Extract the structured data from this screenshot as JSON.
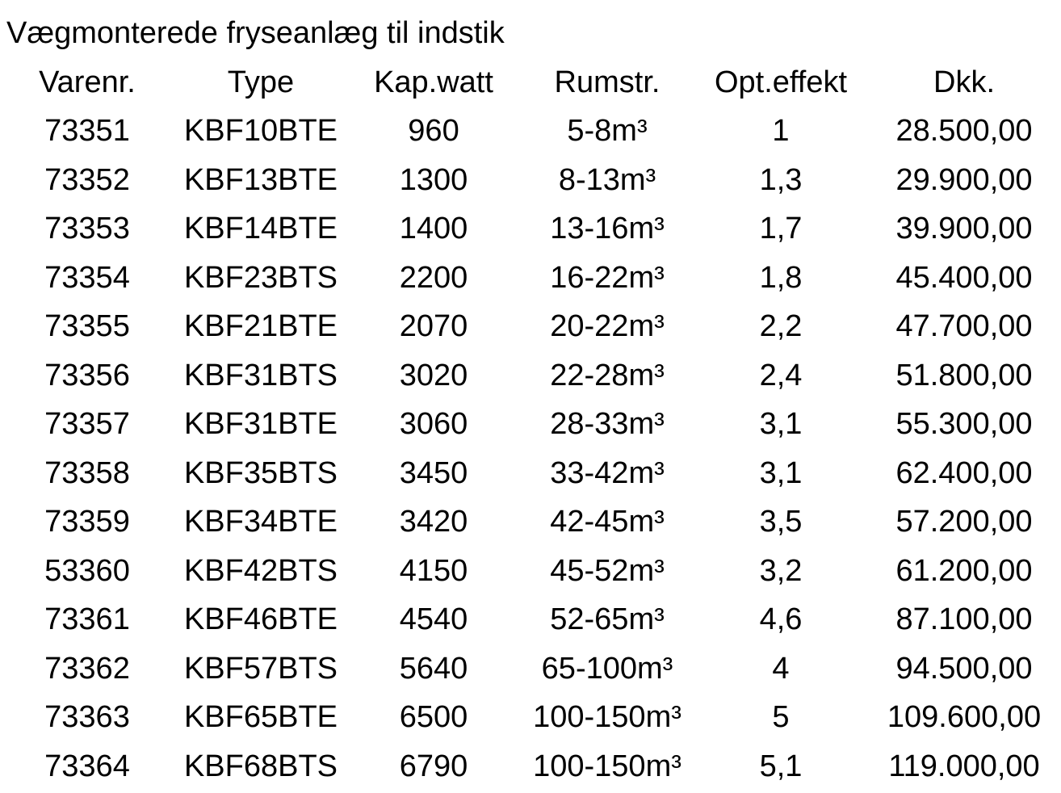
{
  "title": "Vægmonterede fryseanlæg til indstik",
  "columns": [
    "Varenr.",
    "Type",
    "Kap.watt",
    "Rumstr.",
    "Opt.effekt",
    "Dkk."
  ],
  "rows": [
    [
      "73351",
      "KBF10BTE",
      "960",
      "5-8m³",
      "1",
      "28.500,00"
    ],
    [
      "73352",
      "KBF13BTE",
      "1300",
      "8-13m³",
      "1,3",
      "29.900,00"
    ],
    [
      "73353",
      "KBF14BTE",
      "1400",
      "13-16m³",
      "1,7",
      "39.900,00"
    ],
    [
      "73354",
      "KBF23BTS",
      "2200",
      "16-22m³",
      "1,8",
      "45.400,00"
    ],
    [
      "73355",
      "KBF21BTE",
      "2070",
      "20-22m³",
      "2,2",
      "47.700,00"
    ],
    [
      "73356",
      "KBF31BTS",
      "3020",
      "22-28m³",
      "2,4",
      "51.800,00"
    ],
    [
      "73357",
      "KBF31BTE",
      "3060",
      "28-33m³",
      "3,1",
      "55.300,00"
    ],
    [
      "73358",
      "KBF35BTS",
      "3450",
      "33-42m³",
      "3,1",
      "62.400,00"
    ],
    [
      "73359",
      "KBF34BTE",
      "3420",
      "42-45m³",
      "3,5",
      "57.200,00"
    ],
    [
      "53360",
      "KBF42BTS",
      "4150",
      "45-52m³",
      "3,2",
      "61.200,00"
    ],
    [
      "73361",
      "KBF46BTE",
      "4540",
      "52-65m³",
      "4,6",
      "87.100,00"
    ],
    [
      "73362",
      "KBF57BTS",
      "5640",
      "65-100m³",
      "4",
      "94.500,00"
    ],
    [
      "73363",
      "KBF65BTE",
      "6500",
      "100-150m³",
      "5",
      "109.600,00"
    ],
    [
      "73364",
      "KBF68BTS",
      "6790",
      "100-150m³",
      "5,1",
      "119.000,00"
    ]
  ]
}
